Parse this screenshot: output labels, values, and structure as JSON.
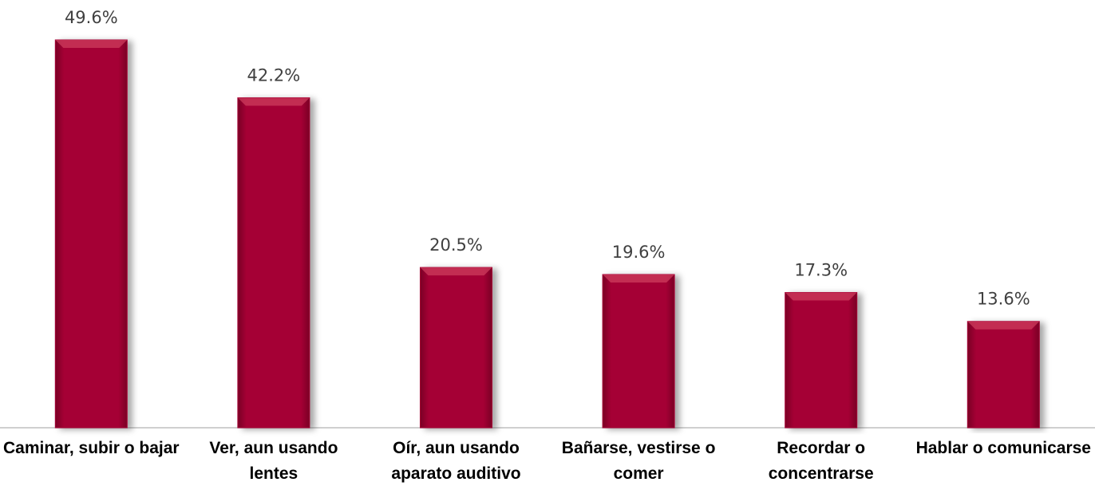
{
  "chart_data": {
    "type": "bar",
    "categories": [
      "Caminar, subir o bajar",
      "Ver, aun usando lentes",
      "Oír, aun usando aparato auditivo",
      "Bañarse, vestirse o comer",
      "Recordar o concentrarse",
      "Hablar o comunicarse"
    ],
    "values": [
      49.6,
      42.2,
      20.5,
      19.6,
      17.3,
      13.6
    ],
    "value_labels": [
      "49.6%",
      "42.2%",
      "20.5%",
      "19.6%",
      "17.3%",
      "13.6%"
    ],
    "color": "#a50034"
  }
}
